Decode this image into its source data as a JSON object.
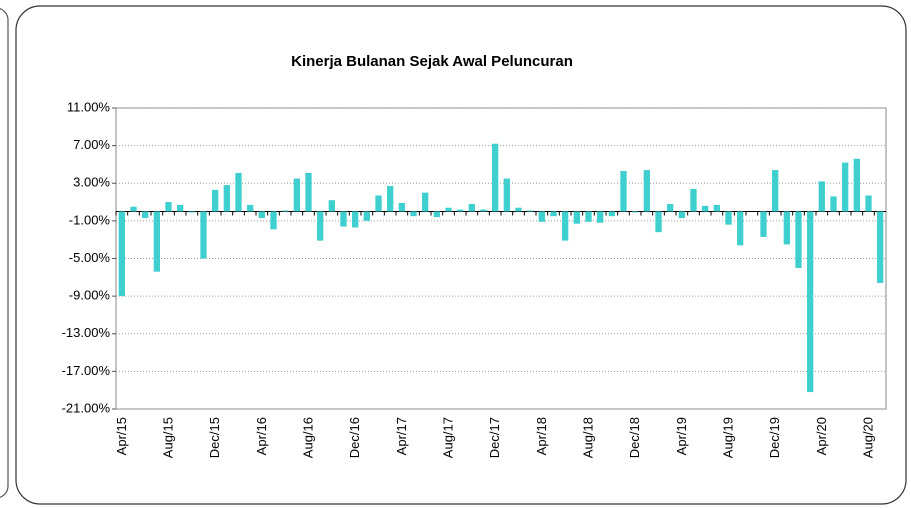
{
  "chart_data": {
    "type": "bar",
    "title": "Kinerja Bulanan Sejak Awal Peluncuran",
    "categories": [
      "Apr/15",
      null,
      null,
      null,
      "Aug/15",
      null,
      null,
      null,
      "Dec/15",
      null,
      null,
      null,
      "Apr/16",
      null,
      null,
      null,
      "Aug/16",
      null,
      null,
      null,
      "Dec/16",
      null,
      null,
      null,
      "Apr/17",
      null,
      null,
      null,
      "Aug/17",
      null,
      null,
      null,
      "Dec/17",
      null,
      null,
      null,
      "Apr/18",
      null,
      null,
      null,
      "Aug/18",
      null,
      null,
      null,
      "Dec/18",
      null,
      null,
      null,
      "Apr/19",
      null,
      null,
      null,
      "Aug/19",
      null,
      null,
      null,
      "Dec/19",
      null,
      null,
      null,
      "Apr/20",
      null,
      null,
      null,
      "Aug/20",
      null
    ],
    "values": [
      -9.0,
      0.5,
      -0.7,
      -6.4,
      1.0,
      0.7,
      -0.1,
      -5.0,
      2.3,
      2.8,
      4.1,
      0.7,
      -0.7,
      -1.9,
      0.1,
      3.5,
      4.1,
      -3.1,
      1.2,
      -1.6,
      -1.7,
      -1.0,
      1.7,
      2.7,
      0.9,
      -0.5,
      2.0,
      -0.6,
      0.4,
      0.2,
      0.8,
      0.2,
      7.2,
      3.5,
      0.4,
      0.1,
      -1.1,
      -0.5,
      -3.1,
      -1.3,
      -1.1,
      -1.2,
      -0.5,
      4.3,
      -0.1,
      4.4,
      -2.2,
      0.8,
      -0.7,
      2.4,
      0.6,
      0.7,
      -1.4,
      -3.6,
      0.0,
      -2.7,
      4.4,
      -3.5,
      -6.0,
      -19.2,
      3.2,
      1.6,
      5.2,
      5.6,
      1.7,
      -7.6
    ],
    "color": "#3fcfcf",
    "ylim": [
      -21,
      11
    ],
    "yticks": [
      {
        "value": -21,
        "label": "-21.00%"
      },
      {
        "value": -17,
        "label": "-17.00%"
      },
      {
        "value": -13,
        "label": "-13.00%"
      },
      {
        "value": -9,
        "label": "-9.00%"
      },
      {
        "value": -5,
        "label": "-5.00%"
      },
      {
        "value": -1,
        "label": "-1.00%"
      },
      {
        "value": 3,
        "label": "3.00%"
      },
      {
        "value": 7,
        "label": "7.00%"
      },
      {
        "value": 11,
        "label": "11.00%"
      }
    ],
    "grid": true
  }
}
